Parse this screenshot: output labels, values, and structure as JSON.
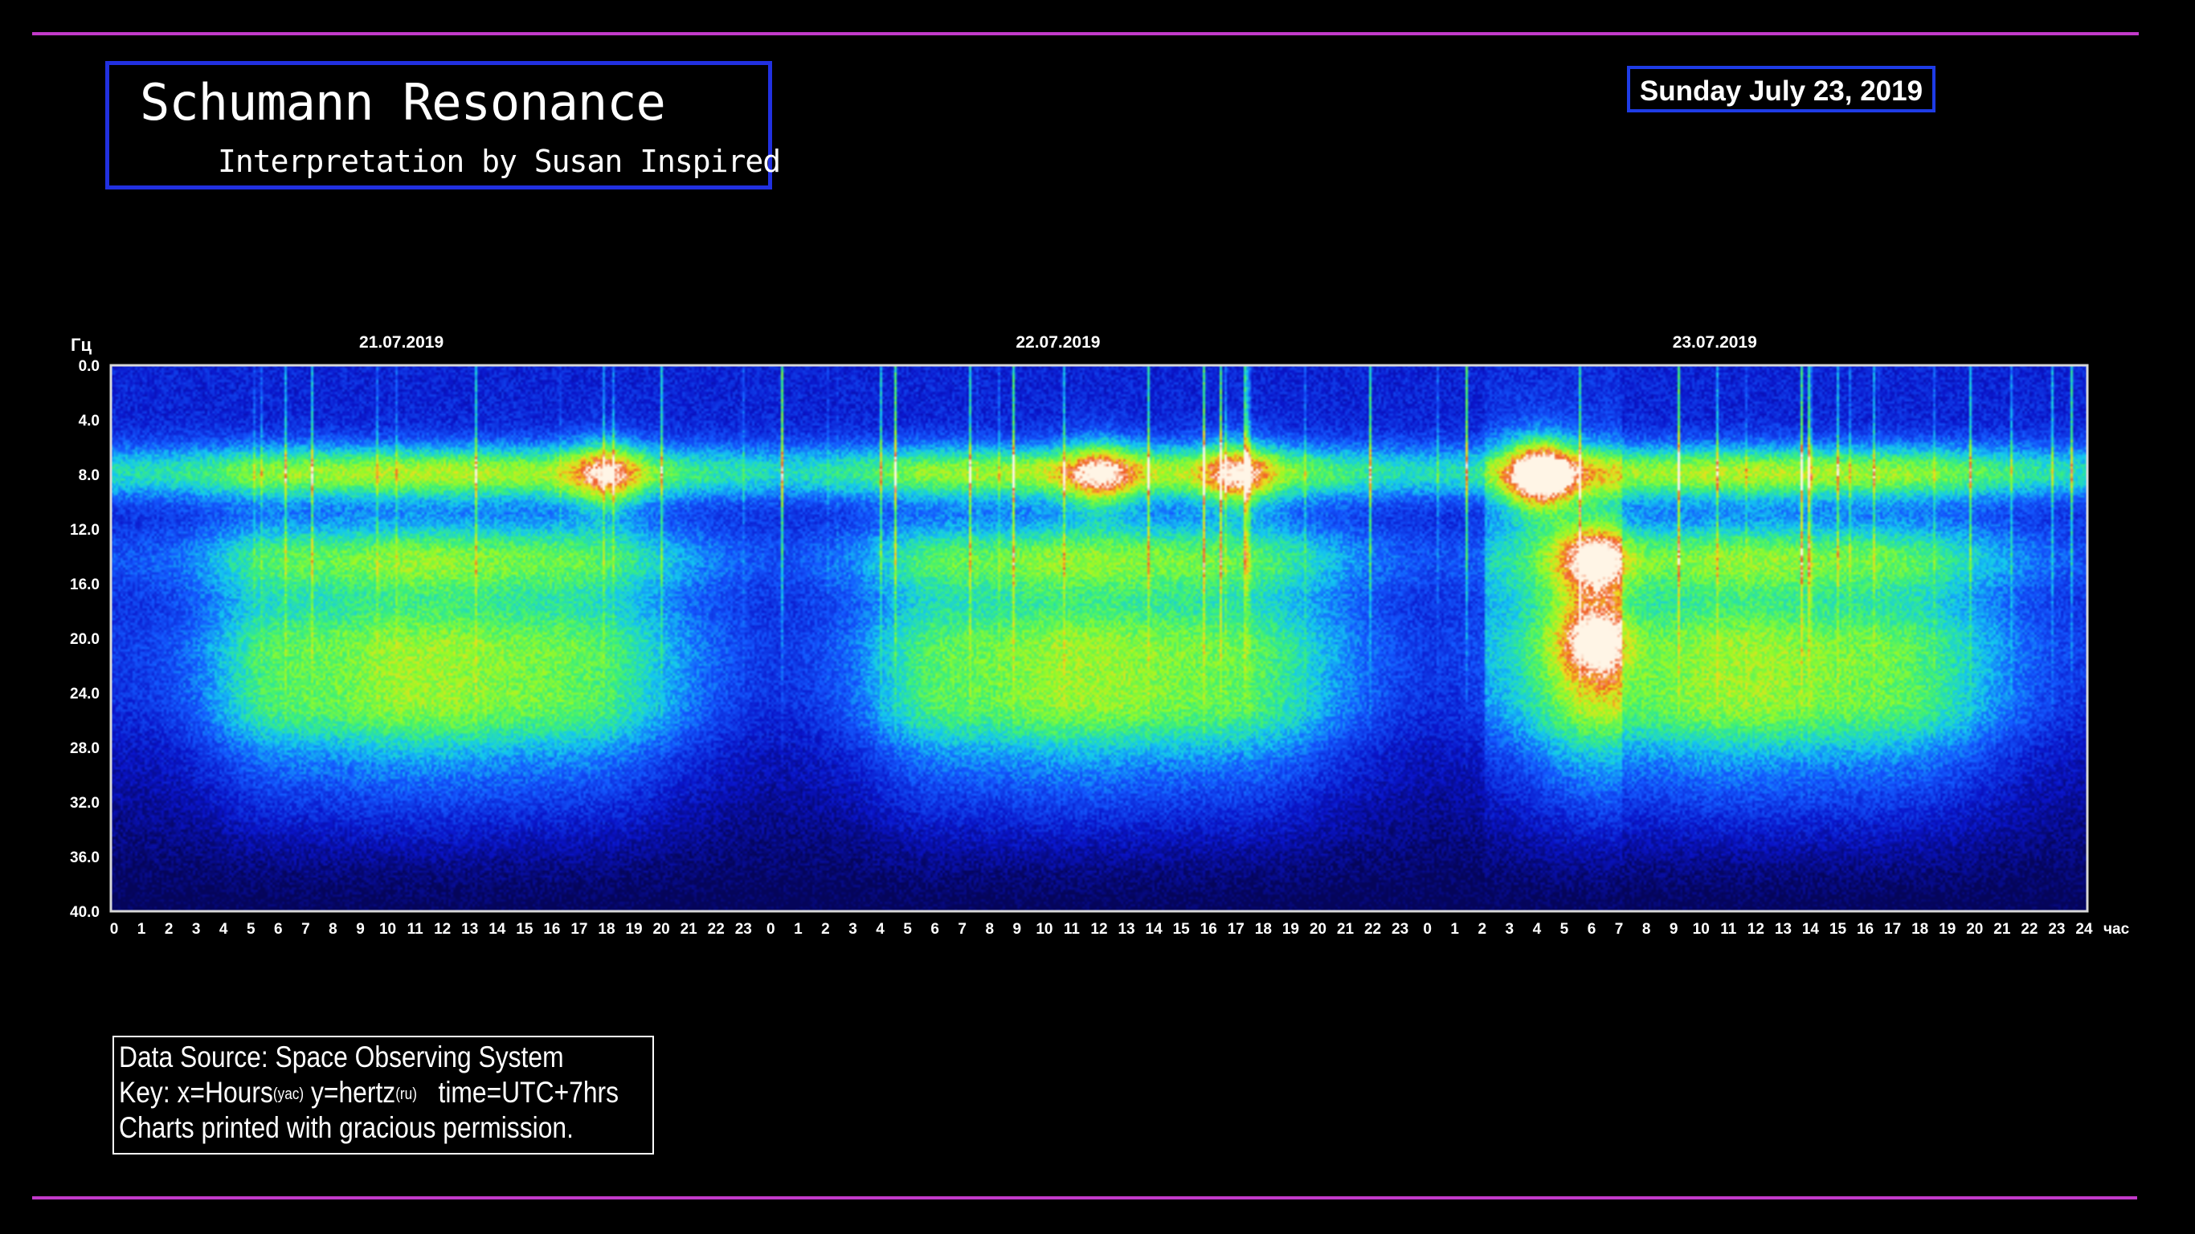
{
  "header": {
    "title": "Schumann Resonance",
    "subtitle": "Interpretation by Susan Inspired",
    "date": "Sunday July 23, 2019"
  },
  "key": {
    "line1": "Data Source: Space Observing System",
    "line2_a": "Key: x=Hours",
    "line2_b": "(yac)",
    "line2_c": "y=hertz",
    "line2_d": "(ru)",
    "line2_e": "time=UTC+7hrs",
    "line3": "Charts printed with gracious permission."
  },
  "colors": {
    "accent_rule": "#c23ac9",
    "title_border": "#2130e0",
    "date_border": "#1e3ce6"
  },
  "chart_data": {
    "type": "heatmap",
    "ylabel": "Гц",
    "xunit": "час",
    "ylim": [
      0,
      40
    ],
    "y_reversed": true,
    "y_ticks": [
      "0.0",
      "4.0",
      "8.0",
      "12.0",
      "16.0",
      "20.0",
      "24.0",
      "28.0",
      "32.0",
      "36.0",
      "40.0"
    ],
    "x_ticks": [
      "0",
      "1",
      "2",
      "3",
      "4",
      "5",
      "6",
      "7",
      "8",
      "9",
      "10",
      "11",
      "12",
      "13",
      "14",
      "15",
      "16",
      "17",
      "18",
      "19",
      "20",
      "21",
      "22",
      "23",
      "0",
      "1",
      "2",
      "3",
      "4",
      "5",
      "6",
      "7",
      "8",
      "9",
      "10",
      "11",
      "12",
      "13",
      "14",
      "15",
      "16",
      "17",
      "18",
      "19",
      "20",
      "21",
      "22",
      "23",
      "0",
      "1",
      "2",
      "3",
      "4",
      "5",
      "6",
      "7",
      "8",
      "9",
      "10",
      "11",
      "12",
      "13",
      "14",
      "15",
      "16",
      "17",
      "18",
      "19",
      "20",
      "21",
      "22",
      "23",
      "24"
    ],
    "day_labels": [
      "21.07.2019",
      "22.07.2019",
      "23.07.2019"
    ],
    "bands_hz": [
      7.8,
      14,
      20,
      25
    ],
    "hotspots": [
      {
        "day": "21.07.2019",
        "hour": 18,
        "hz": 8,
        "level": "high"
      },
      {
        "day": "22.07.2019",
        "hour": 12,
        "hz": 8,
        "level": "high"
      },
      {
        "day": "22.07.2019",
        "hour": 17,
        "hz": 8,
        "level": "high"
      },
      {
        "day": "23.07.2019",
        "hour": 4,
        "hz": 8,
        "level": "peak"
      },
      {
        "day": "23.07.2019",
        "hour": 6,
        "hz": 14,
        "level": "high"
      },
      {
        "day": "23.07.2019",
        "hour": 6,
        "hz": 20,
        "level": "high"
      }
    ]
  }
}
